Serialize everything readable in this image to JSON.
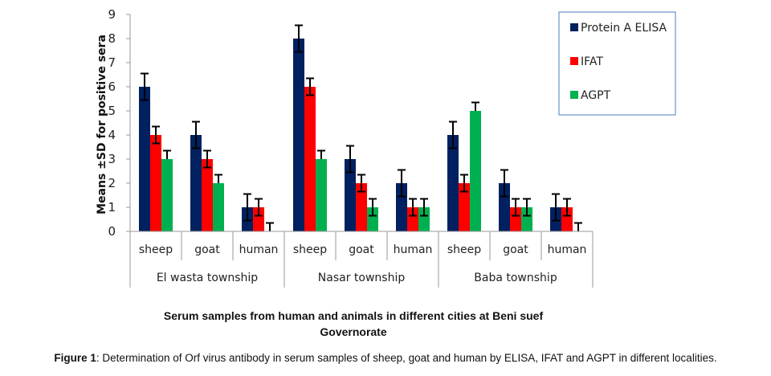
{
  "chart_data": {
    "type": "bar",
    "ylabel": "Means ±SD for positive sera",
    "xlabel": "Serum samples from human and animals in different cities at Beni suef Governorate",
    "xlabel_lines": [
      "Serum samples from human and animals in different cities at Beni suef",
      "Governorate"
    ],
    "ylim": [
      0,
      9
    ],
    "yticks": [
      "0",
      "1",
      "2",
      "3",
      "4",
      "5",
      "6",
      "7",
      "8",
      "9"
    ],
    "grid": false,
    "legend_position": "top-right",
    "groups": [
      {
        "name": "El wasta  township",
        "categories": [
          "sheep",
          "goat",
          "human"
        ]
      },
      {
        "name": "Nasar township",
        "categories": [
          "sheep",
          "goat",
          "human"
        ]
      },
      {
        "name": "Baba township",
        "categories": [
          "sheep",
          "goat",
          "human"
        ]
      }
    ],
    "categories": [
      "sheep",
      "goat",
      "human",
      "sheep",
      "goat",
      "human",
      "sheep",
      "goat",
      "human"
    ],
    "series": [
      {
        "name": "Protein A ELISA",
        "color": "#002060",
        "values": [
          6,
          4,
          1,
          8,
          3,
          2,
          4,
          2,
          1
        ],
        "errors": [
          0.55,
          0.55,
          0.55,
          0.55,
          0.55,
          0.55,
          0.55,
          0.55,
          0.55
        ]
      },
      {
        "name": "IFAT",
        "color": "#ff0000",
        "values": [
          4,
          3,
          1,
          6,
          2,
          1,
          2,
          1,
          1
        ],
        "errors": [
          0.35,
          0.35,
          0.35,
          0.35,
          0.35,
          0.35,
          0.35,
          0.35,
          0.35
        ]
      },
      {
        "name": "AGPT",
        "color": "#00b050",
        "values": [
          3,
          2,
          0,
          3,
          1,
          1,
          5,
          1,
          0
        ],
        "errors": [
          0.35,
          0.35,
          0.35,
          0.35,
          0.35,
          0.35,
          0.35,
          0.35,
          0.35
        ]
      }
    ]
  },
  "caption": {
    "label": "Figure 1",
    "text": ": Determination of Orf virus antibody in serum samples of sheep, goat and human by ELISA, IFAT and AGPT in different localities."
  }
}
